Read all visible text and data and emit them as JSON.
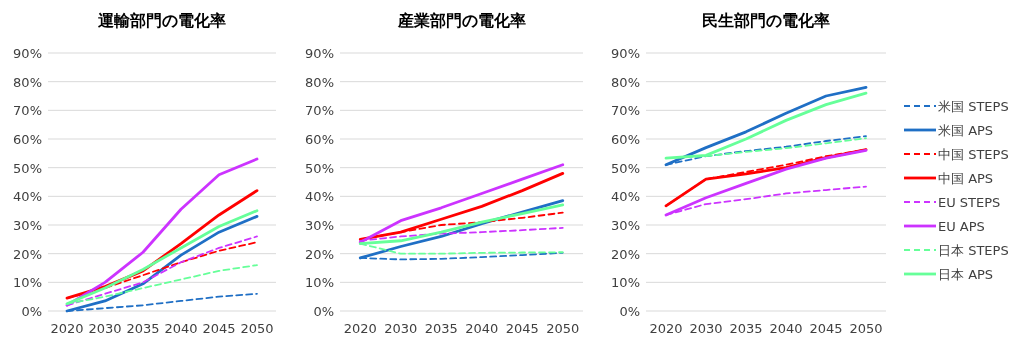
{
  "chart_data": [
    {
      "type": "line",
      "title": "運輸部門の電化率",
      "categories": [
        "2020",
        "2030",
        "2035",
        "2040",
        "2045",
        "2050"
      ],
      "ylim": [
        0,
        90
      ],
      "yticks": [
        {
          "value": 0,
          "label": "0%"
        },
        {
          "value": 10,
          "label": "10%"
        },
        {
          "value": 20,
          "label": "20%"
        },
        {
          "value": 30,
          "label": "30%"
        },
        {
          "value": 40,
          "label": "40%"
        },
        {
          "value": 50,
          "label": "50%"
        },
        {
          "value": 60,
          "label": "60%"
        },
        {
          "value": 70,
          "label": "70%"
        },
        {
          "value": 80,
          "label": "80%"
        },
        {
          "value": 90,
          "label": "90%"
        }
      ],
      "grid": "y",
      "legend": false,
      "series": [
        {
          "color": "#1f6fc5",
          "line_style": "dashed",
          "values": [
            0,
            1,
            2,
            3.5,
            5,
            6
          ]
        },
        {
          "color": "#1f6fc5",
          "line_style": "solid",
          "values": [
            0,
            3.5,
            9.5,
            19.5,
            27.5,
            33
          ]
        },
        {
          "color": "#ff0000",
          "line_style": "dashed",
          "values": [
            4.5,
            8,
            12.5,
            17,
            21,
            24
          ]
        },
        {
          "color": "#ff0000",
          "line_style": "solid",
          "values": [
            4.5,
            8.5,
            14,
            23.5,
            33.5,
            42
          ]
        },
        {
          "color": "#cc33ff",
          "line_style": "dashed",
          "values": [
            2,
            6,
            10,
            17,
            22,
            26
          ]
        },
        {
          "color": "#cc33ff",
          "line_style": "solid",
          "values": [
            2,
            10,
            20.5,
            35.5,
            47.5,
            53
          ]
        },
        {
          "color": "#66ff99",
          "line_style": "dashed",
          "values": [
            2.5,
            5,
            8,
            11,
            14,
            16
          ]
        },
        {
          "color": "#66ff99",
          "line_style": "solid",
          "values": [
            2.5,
            8,
            14.5,
            22,
            29.5,
            35
          ]
        }
      ]
    },
    {
      "type": "line",
      "title": "産業部門の電化率",
      "categories": [
        "2020",
        "2030",
        "2035",
        "2040",
        "2045",
        "2050"
      ],
      "ylim": [
        0,
        90
      ],
      "yticks": [
        {
          "value": 0,
          "label": "0%"
        },
        {
          "value": 10,
          "label": "10%"
        },
        {
          "value": 20,
          "label": "20%"
        },
        {
          "value": 30,
          "label": "30%"
        },
        {
          "value": 40,
          "label": "40%"
        },
        {
          "value": 50,
          "label": "50%"
        },
        {
          "value": 60,
          "label": "60%"
        },
        {
          "value": 70,
          "label": "70%"
        },
        {
          "value": 80,
          "label": "80%"
        },
        {
          "value": 90,
          "label": "90%"
        }
      ],
      "grid": "y",
      "legend": false,
      "series": [
        {
          "color": "#1f6fc5",
          "line_style": "dashed",
          "values": [
            18.5,
            18,
            18.2,
            18.8,
            19.5,
            20.3
          ]
        },
        {
          "color": "#1f6fc5",
          "line_style": "solid",
          "values": [
            18.5,
            22.5,
            26,
            30.5,
            34.5,
            38.5
          ]
        },
        {
          "color": "#ff0000",
          "line_style": "dashed",
          "values": [
            25,
            27.5,
            30,
            31,
            32.5,
            34.3
          ]
        },
        {
          "color": "#ff0000",
          "line_style": "solid",
          "values": [
            25,
            27.5,
            32,
            36.5,
            42,
            48
          ]
        },
        {
          "color": "#cc33ff",
          "line_style": "dashed",
          "values": [
            24.5,
            26,
            27,
            27.5,
            28.2,
            29
          ]
        },
        {
          "color": "#cc33ff",
          "line_style": "solid",
          "values": [
            24,
            31.5,
            36,
            41,
            46,
            51
          ]
        },
        {
          "color": "#66ff99",
          "line_style": "dashed",
          "values": [
            23.5,
            20,
            20,
            20.3,
            20.4,
            20.5
          ]
        },
        {
          "color": "#66ff99",
          "line_style": "solid",
          "values": [
            23.5,
            24.5,
            27.5,
            31,
            34,
            37
          ]
        }
      ]
    },
    {
      "type": "line",
      "title": "民生部門の電化率",
      "categories": [
        "2020",
        "2030",
        "2035",
        "2040",
        "2045",
        "2050"
      ],
      "ylim": [
        0,
        90
      ],
      "yticks": [
        {
          "value": 0,
          "label": "0%"
        },
        {
          "value": 10,
          "label": "10%"
        },
        {
          "value": 20,
          "label": "20%"
        },
        {
          "value": 30,
          "label": "30%"
        },
        {
          "value": 40,
          "label": "40%"
        },
        {
          "value": 50,
          "label": "50%"
        },
        {
          "value": 60,
          "label": "60%"
        },
        {
          "value": 70,
          "label": "70%"
        },
        {
          "value": 80,
          "label": "80%"
        },
        {
          "value": 90,
          "label": "90%"
        }
      ],
      "grid": "y",
      "legend": "right",
      "series": [
        {
          "name": "米国 STEPS",
          "color": "#1f6fc5",
          "line_style": "dashed",
          "values": [
            51,
            54,
            55.8,
            57.3,
            59.3,
            61
          ]
        },
        {
          "name": "米国 APS",
          "color": "#1f6fc5",
          "line_style": "solid",
          "values": [
            51,
            57,
            62.5,
            69,
            75,
            78
          ]
        },
        {
          "name": "中国 STEPS",
          "color": "#ff0000",
          "line_style": "dashed",
          "values": [
            36.7,
            46,
            48.5,
            51,
            54,
            56.3
          ]
        },
        {
          "name": "中国 APS",
          "color": "#ff0000",
          "line_style": "solid",
          "values": [
            36.7,
            46,
            47.8,
            50,
            53.5,
            56.3
          ]
        },
        {
          "name": "EU STEPS",
          "color": "#cc33ff",
          "line_style": "dashed",
          "values": [
            33.5,
            37.3,
            39,
            41,
            42.2,
            43.4
          ]
        },
        {
          "name": "EU APS",
          "color": "#cc33ff",
          "line_style": "solid",
          "values": [
            33.5,
            39.5,
            44.5,
            49.5,
            53.3,
            56
          ]
        },
        {
          "name": "日本 STEPS",
          "color": "#66ff99",
          "line_style": "dashed",
          "values": [
            53.3,
            54,
            55.5,
            56.8,
            58.5,
            60.3
          ]
        },
        {
          "name": "日本 APS",
          "color": "#66ff99",
          "line_style": "solid",
          "values": [
            53.3,
            54.3,
            60,
            66.5,
            72,
            76
          ]
        }
      ]
    }
  ]
}
